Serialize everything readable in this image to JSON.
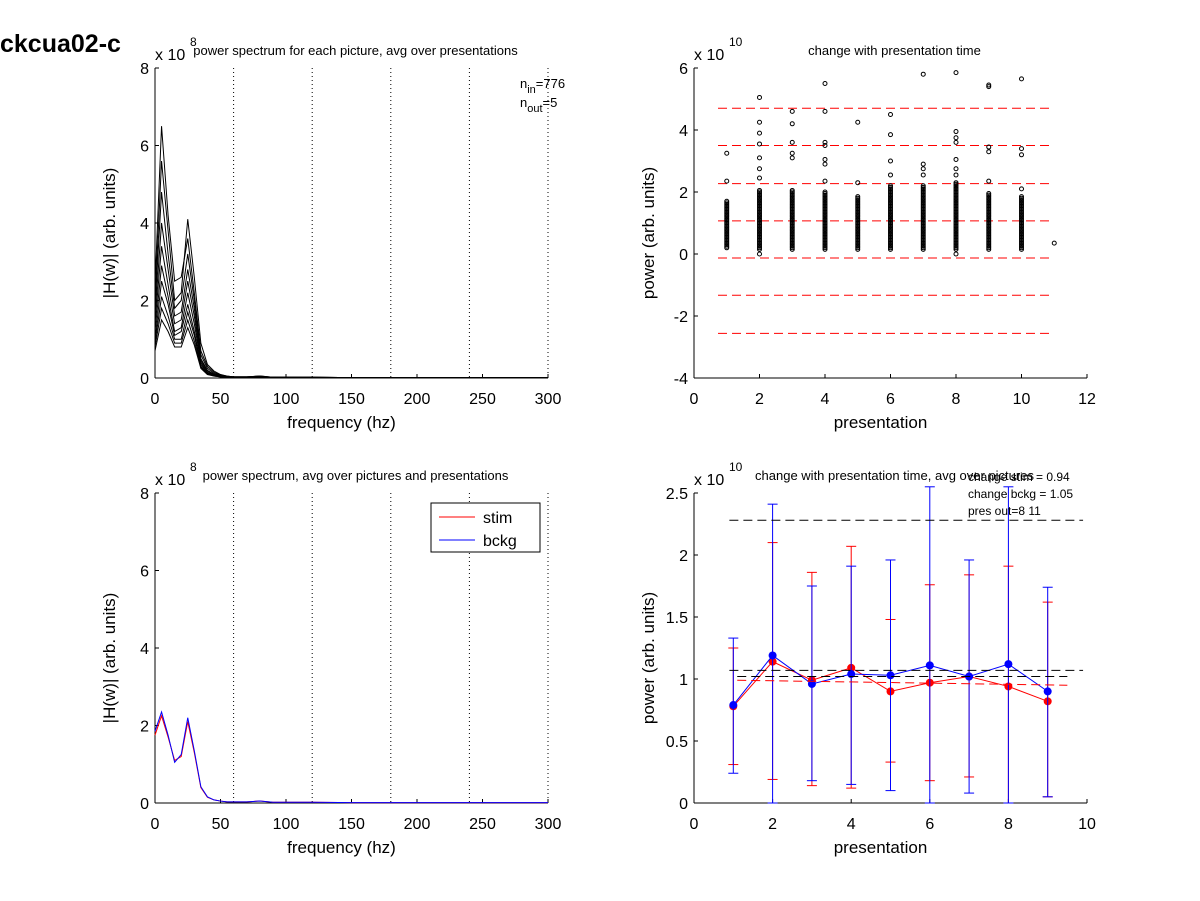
{
  "figure_title": "ckcua02-c",
  "chart_data": [
    {
      "id": "tl",
      "type": "line",
      "title": "power spectrum for each picture, avg over presentations",
      "xlabel": "frequency (hz)",
      "ylabel": "|H(w)| (arb. units)",
      "xlim": [
        0,
        300
      ],
      "ylim": [
        0,
        8
      ],
      "xticks": [
        "0",
        "50",
        "100",
        "150",
        "200",
        "250",
        "300"
      ],
      "yticks": [
        "0",
        "2",
        "4",
        "6",
        "8"
      ],
      "exponent_base": "x 10",
      "exponent": "8",
      "vlines": [
        60,
        120,
        180,
        240,
        300
      ],
      "annotation": {
        "n_in_label": "n",
        "n_in_sub": "in",
        "n_in_value": "=776",
        "n_out_label": "n",
        "n_out_sub": "out",
        "n_out_value": "=5"
      },
      "x": [
        0,
        5,
        10,
        15,
        20,
        25,
        30,
        35,
        40,
        45,
        50,
        55,
        60,
        70,
        80,
        90,
        100,
        120,
        150,
        200,
        250,
        300
      ],
      "series": [
        {
          "values": [
            2.4,
            6.5,
            4.2,
            2.5,
            2.6,
            3.6,
            2.2,
            0.7,
            0.3,
            0.15,
            0.08,
            0.05,
            0.03,
            0.03,
            0.05,
            0.02,
            0.02,
            0.02,
            0.01,
            0.01,
            0.01,
            0.01
          ]
        },
        {
          "values": [
            2.0,
            5.6,
            3.8,
            2.0,
            2.2,
            4.1,
            2.6,
            0.9,
            0.35,
            0.18,
            0.09,
            0.05,
            0.03,
            0.03,
            0.05,
            0.02,
            0.02,
            0.02,
            0.01,
            0.01,
            0.01,
            0.01
          ]
        },
        {
          "values": [
            1.8,
            4.8,
            3.2,
            1.8,
            2.0,
            3.2,
            2.0,
            0.6,
            0.25,
            0.12,
            0.07,
            0.04,
            0.03,
            0.03,
            0.04,
            0.02,
            0.02,
            0.02,
            0.01,
            0.01,
            0.01,
            0.01
          ]
        },
        {
          "values": [
            1.6,
            4.0,
            2.8,
            1.6,
            1.7,
            2.8,
            1.8,
            0.5,
            0.2,
            0.1,
            0.06,
            0.04,
            0.03,
            0.03,
            0.04,
            0.02,
            0.02,
            0.02,
            0.01,
            0.01,
            0.01,
            0.01
          ]
        },
        {
          "values": [
            1.4,
            3.4,
            2.4,
            1.4,
            1.5,
            2.5,
            1.6,
            0.45,
            0.18,
            0.09,
            0.05,
            0.03,
            0.02,
            0.02,
            0.03,
            0.02,
            0.02,
            0.01,
            0.01,
            0.01,
            0.01,
            0.01
          ]
        },
        {
          "values": [
            1.2,
            2.9,
            2.1,
            1.2,
            1.3,
            2.2,
            1.4,
            0.4,
            0.15,
            0.08,
            0.05,
            0.03,
            0.02,
            0.02,
            0.03,
            0.02,
            0.01,
            0.01,
            0.01,
            0.01,
            0.01,
            0.01
          ]
        },
        {
          "values": [
            1.0,
            2.5,
            1.9,
            1.1,
            1.2,
            1.9,
            1.2,
            0.35,
            0.13,
            0.07,
            0.04,
            0.03,
            0.02,
            0.02,
            0.03,
            0.02,
            0.01,
            0.01,
            0.01,
            0.01,
            0.01,
            0.01
          ]
        },
        {
          "values": [
            0.9,
            2.1,
            1.6,
            1.0,
            1.0,
            1.7,
            1.1,
            0.3,
            0.12,
            0.06,
            0.04,
            0.02,
            0.02,
            0.02,
            0.03,
            0.01,
            0.01,
            0.01,
            0.01,
            0.01,
            0.01,
            0.01
          ]
        },
        {
          "values": [
            0.8,
            1.8,
            1.4,
            0.9,
            0.9,
            1.5,
            0.95,
            0.28,
            0.1,
            0.05,
            0.03,
            0.02,
            0.02,
            0.02,
            0.02,
            0.01,
            0.01,
            0.01,
            0.01,
            0.01,
            0.01,
            0.01
          ]
        },
        {
          "values": [
            0.7,
            1.5,
            1.2,
            0.8,
            0.8,
            1.3,
            0.85,
            0.25,
            0.09,
            0.05,
            0.03,
            0.02,
            0.02,
            0.02,
            0.02,
            0.01,
            0.01,
            0.01,
            0.01,
            0.01,
            0.01,
            0.01
          ]
        }
      ]
    },
    {
      "id": "tr",
      "type": "scatter",
      "title": "change with presentation time",
      "xlabel": "presentation",
      "ylabel": "power (arb. units)",
      "xlim": [
        0,
        12
      ],
      "ylim": [
        -4,
        6
      ],
      "xticks": [
        "0",
        "2",
        "4",
        "6",
        "8",
        "10",
        "12"
      ],
      "yticks": [
        "-4",
        "-2",
        "0",
        "2",
        "4",
        "6"
      ],
      "exponent_base": "x 10",
      "exponent": "10",
      "hlines": [
        4.7,
        3.5,
        2.27,
        1.07,
        -0.13,
        -1.33,
        -2.56
      ],
      "hline_color": "#ff0000",
      "outliers": [
        {
          "x": 1,
          "y": 3.25
        },
        {
          "x": 1,
          "y": 2.35
        },
        {
          "x": 2,
          "y": 5.05
        },
        {
          "x": 2,
          "y": 4.25
        },
        {
          "x": 2,
          "y": 3.9
        },
        {
          "x": 2,
          "y": 3.55
        },
        {
          "x": 2,
          "y": 3.1
        },
        {
          "x": 2,
          "y": 2.75
        },
        {
          "x": 2,
          "y": 2.45
        },
        {
          "x": 2,
          "y": 0.0
        },
        {
          "x": 3,
          "y": 4.6
        },
        {
          "x": 3,
          "y": 4.2
        },
        {
          "x": 3,
          "y": 3.6
        },
        {
          "x": 3,
          "y": 3.25
        },
        {
          "x": 3,
          "y": 3.1
        },
        {
          "x": 4,
          "y": 5.5
        },
        {
          "x": 4,
          "y": 4.6
        },
        {
          "x": 4,
          "y": 3.6
        },
        {
          "x": 4,
          "y": 3.5
        },
        {
          "x": 4,
          "y": 3.05
        },
        {
          "x": 4,
          "y": 2.9
        },
        {
          "x": 4,
          "y": 2.35
        },
        {
          "x": 5,
          "y": 4.25
        },
        {
          "x": 5,
          "y": 2.3
        },
        {
          "x": 6,
          "y": 4.5
        },
        {
          "x": 6,
          "y": 3.85
        },
        {
          "x": 6,
          "y": 3.0
        },
        {
          "x": 6,
          "y": 2.55
        },
        {
          "x": 7,
          "y": 5.8
        },
        {
          "x": 7,
          "y": 2.9
        },
        {
          "x": 7,
          "y": 2.75
        },
        {
          "x": 7,
          "y": 2.55
        },
        {
          "x": 8,
          "y": 5.85
        },
        {
          "x": 8,
          "y": 3.95
        },
        {
          "x": 8,
          "y": 3.75
        },
        {
          "x": 8,
          "y": 3.6
        },
        {
          "x": 8,
          "y": 3.05
        },
        {
          "x": 8,
          "y": 2.75
        },
        {
          "x": 8,
          "y": 2.55
        },
        {
          "x": 8,
          "y": 0.0
        },
        {
          "x": 9,
          "y": 5.45
        },
        {
          "x": 9,
          "y": 5.4
        },
        {
          "x": 9,
          "y": 3.45
        },
        {
          "x": 9,
          "y": 3.3
        },
        {
          "x": 9,
          "y": 2.35
        },
        {
          "x": 10,
          "y": 5.65
        },
        {
          "x": 10,
          "y": 3.4
        },
        {
          "x": 10,
          "y": 3.2
        },
        {
          "x": 10,
          "y": 2.1
        },
        {
          "x": 11,
          "y": 0.35
        }
      ],
      "dense_ranges": [
        {
          "x": 1,
          "ymin": 0.2,
          "ymax": 1.75
        },
        {
          "x": 2,
          "ymin": 0.15,
          "ymax": 2.1
        },
        {
          "x": 3,
          "ymin": 0.15,
          "ymax": 2.1
        },
        {
          "x": 4,
          "ymin": 0.15,
          "ymax": 2.05
        },
        {
          "x": 5,
          "ymin": 0.15,
          "ymax": 1.9
        },
        {
          "x": 6,
          "ymin": 0.15,
          "ymax": 2.2
        },
        {
          "x": 7,
          "ymin": 0.15,
          "ymax": 2.2
        },
        {
          "x": 8,
          "ymin": 0.15,
          "ymax": 2.3
        },
        {
          "x": 9,
          "ymin": 0.15,
          "ymax": 2.0
        },
        {
          "x": 10,
          "ymin": 0.15,
          "ymax": 1.9
        }
      ]
    },
    {
      "id": "bl",
      "type": "line",
      "title": "power spectrum, avg over pictures and presentations",
      "xlabel": "frequency (hz)",
      "ylabel": "|H(w)| (arb. units)",
      "xlim": [
        0,
        300
      ],
      "ylim": [
        0,
        8
      ],
      "xticks": [
        "0",
        "50",
        "100",
        "150",
        "200",
        "250",
        "300"
      ],
      "yticks": [
        "0",
        "2",
        "4",
        "6",
        "8"
      ],
      "exponent_base": "x 10",
      "exponent": "8",
      "vlines": [
        60,
        120,
        180,
        240,
        300
      ],
      "legend": {
        "position": "top-right",
        "entries": [
          {
            "label": "stim",
            "color": "#ff0000"
          },
          {
            "label": "bckg",
            "color": "#0000ff"
          }
        ]
      },
      "x": [
        0,
        5,
        10,
        15,
        20,
        25,
        30,
        35,
        40,
        45,
        50,
        55,
        60,
        70,
        80,
        90,
        100,
        120,
        150,
        200,
        250,
        300
      ],
      "series": [
        {
          "name": "stim",
          "color": "#ff0000",
          "values": [
            1.75,
            2.25,
            1.7,
            1.1,
            1.2,
            2.1,
            1.3,
            0.4,
            0.15,
            0.08,
            0.05,
            0.03,
            0.03,
            0.03,
            0.05,
            0.02,
            0.02,
            0.02,
            0.01,
            0.01,
            0.01,
            0.01
          ]
        },
        {
          "name": "bckg",
          "color": "#0000ff",
          "values": [
            1.85,
            2.35,
            1.75,
            1.05,
            1.25,
            2.2,
            1.35,
            0.42,
            0.16,
            0.08,
            0.05,
            0.03,
            0.03,
            0.03,
            0.05,
            0.02,
            0.02,
            0.02,
            0.01,
            0.01,
            0.01,
            0.01
          ]
        }
      ]
    },
    {
      "id": "br",
      "type": "line",
      "title": "change with presentation time, avg over pictures",
      "xlabel": "presentation",
      "ylabel": "power (arb. units)",
      "xlim": [
        0,
        10
      ],
      "ylim": [
        0,
        2.5
      ],
      "xticks": [
        "0",
        "2",
        "4",
        "6",
        "8",
        "10"
      ],
      "yticks": [
        "0",
        "0.5",
        "1",
        "1.5",
        "2",
        "2.5"
      ],
      "exponent_base": "x 10",
      "exponent": "10",
      "annotations": [
        "change stim = 0.94",
        "change bckg = 1.05",
        "pres out=8 11"
      ],
      "x": [
        1,
        2,
        3,
        4,
        5,
        6,
        7,
        8,
        9
      ],
      "series": [
        {
          "name": "stim",
          "color": "#ff0000",
          "values": [
            0.78,
            1.14,
            0.99,
            1.09,
            0.9,
            0.97,
            1.02,
            0.94,
            0.82
          ],
          "err_low": [
            0.31,
            0.19,
            0.14,
            0.12,
            0.33,
            0.18,
            0.21,
            0.0,
            0.05
          ],
          "err_high": [
            1.25,
            2.1,
            1.86,
            2.07,
            1.48,
            1.76,
            1.84,
            1.91,
            1.62
          ]
        },
        {
          "name": "bckg",
          "color": "#0000ff",
          "values": [
            0.79,
            1.19,
            0.96,
            1.04,
            1.03,
            1.11,
            1.02,
            1.12,
            0.9
          ],
          "err_low": [
            0.24,
            0.0,
            0.18,
            0.15,
            0.1,
            0.0,
            0.08,
            0.0,
            0.05
          ],
          "err_high": [
            1.33,
            2.41,
            1.75,
            1.91,
            1.96,
            2.55,
            1.96,
            2.55,
            1.74
          ]
        }
      ],
      "dashed_lines": [
        {
          "color": "#000000",
          "y": 2.28,
          "x": [
            0.9,
            9.9
          ]
        },
        {
          "color": "#000000",
          "y": 1.07,
          "x": [
            0.9,
            9.9
          ]
        },
        {
          "color": "#000000",
          "y": 1.02,
          "x": [
            1.1,
            9.5
          ]
        },
        {
          "color": "#ff0000",
          "y": [
            0.99,
            0.95
          ],
          "x": [
            1.1,
            9.5
          ]
        }
      ]
    }
  ]
}
